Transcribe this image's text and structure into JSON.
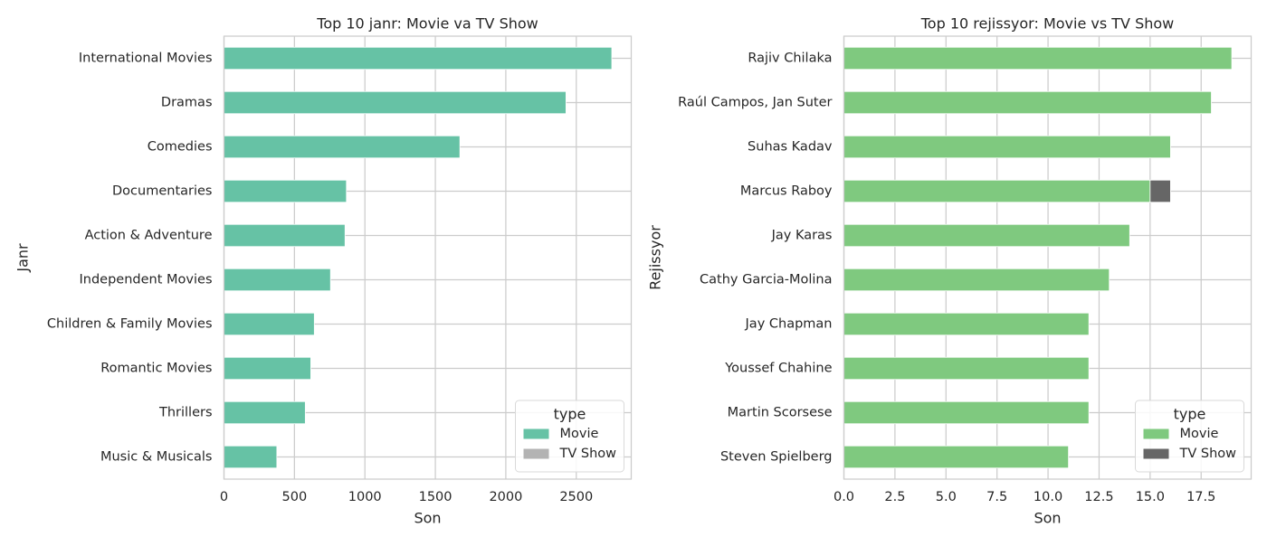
{
  "chart_data": [
    {
      "type": "bar",
      "orientation": "horizontal",
      "stacked": true,
      "title": "Top 10 janr: Movie va TV Show",
      "xlabel": "Son",
      "ylabel": "Janr",
      "categories": [
        "International Movies",
        "Dramas",
        "Comedies",
        "Documentaries",
        "Action & Adventure",
        "Independent Movies",
        "Children & Family Movies",
        "Romantic Movies",
        "Thrillers",
        "Music & Musicals"
      ],
      "series": [
        {
          "name": "Movie",
          "color": "#66c2a5",
          "values": [
            2752,
            2427,
            1674,
            869,
            859,
            756,
            641,
            616,
            577,
            375
          ]
        },
        {
          "name": "TV Show",
          "color": "#b3b3b3",
          "values": [
            0,
            0,
            0,
            0,
            0,
            0,
            0,
            0,
            0,
            0
          ]
        }
      ],
      "xlim": [
        0,
        2890
      ],
      "xticks": [
        0,
        500,
        1000,
        1500,
        2000,
        2500
      ],
      "xtick_labels": [
        "0",
        "500",
        "1000",
        "1500",
        "2000",
        "2500"
      ],
      "grid": true,
      "legend": {
        "title": "type",
        "position": "bottom-right"
      }
    },
    {
      "type": "bar",
      "orientation": "horizontal",
      "stacked": true,
      "title": "Top 10 rejissyor: Movie vs TV Show",
      "xlabel": "Son",
      "ylabel": "Rejissyor",
      "categories": [
        "Rajiv Chilaka",
        "Raúl Campos, Jan Suter",
        "Suhas Kadav",
        "Marcus Raboy",
        "Jay Karas",
        "Cathy Garcia-Molina",
        "Jay Chapman",
        "Youssef Chahine",
        "Martin Scorsese",
        "Steven Spielberg"
      ],
      "series": [
        {
          "name": "Movie",
          "color": "#7fc97f",
          "values": [
            19,
            18,
            16,
            15,
            14,
            13,
            12,
            12,
            12,
            11
          ]
        },
        {
          "name": "TV Show",
          "color": "#666666",
          "values": [
            0,
            0,
            0,
            1,
            0,
            0,
            0,
            0,
            0,
            0
          ]
        }
      ],
      "xlim": [
        0,
        19.95
      ],
      "xticks": [
        0,
        2.5,
        5,
        7.5,
        10,
        12.5,
        15,
        17.5
      ],
      "xtick_labels": [
        "0.0",
        "2.5",
        "5.0",
        "7.5",
        "10.0",
        "12.5",
        "15.0",
        "17.5"
      ],
      "grid": true,
      "legend": {
        "title": "type",
        "position": "bottom-right"
      }
    }
  ]
}
